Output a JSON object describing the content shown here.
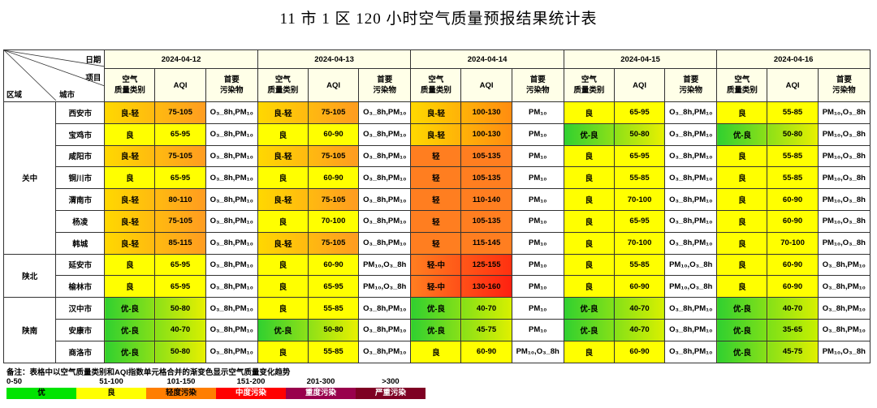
{
  "title": "11 市 1 区 120 小时空气质量预报结果统计表",
  "header": {
    "corner_date": "日期",
    "corner_item": "项目",
    "corner_region": "区域",
    "corner_city": "城市",
    "dates": [
      "2024-04-12",
      "2024-04-13",
      "2024-04-14",
      "2024-04-15",
      "2024-04-16"
    ],
    "sub_category_1": "空气",
    "sub_category_2": "质量类别",
    "sub_aqi": "AQI",
    "sub_pollutant_1": "首要",
    "sub_pollutant_2": "污染物"
  },
  "regions": [
    {
      "name": "关中",
      "rows": 7
    },
    {
      "name": "陕北",
      "rows": 2
    },
    {
      "name": "陕南",
      "rows": 3
    }
  ],
  "rows": [
    {
      "city": "西安市",
      "days": [
        {
          "cat": "良-轻",
          "aqi": "75-105",
          "pol": "O₃_8h,PM₁₀",
          "c1": "#ffd800",
          "c2": "#ff9c20"
        },
        {
          "cat": "良-轻",
          "aqi": "75-105",
          "pol": "O₃_8h,PM₁₀",
          "c1": "#ffd800",
          "c2": "#ff9c20"
        },
        {
          "cat": "良-轻",
          "aqi": "100-130",
          "pol": "PM₁₀",
          "c1": "#ffd800",
          "c2": "#ff8c10"
        },
        {
          "cat": "良",
          "aqi": "65-95",
          "pol": "O₃_8h,PM₁₀",
          "c1": "#ffff00",
          "c2": "#ffff00"
        },
        {
          "cat": "良",
          "aqi": "55-85",
          "pol": "PM₁₀,O₃_8h",
          "c1": "#ffff00",
          "c2": "#ffff00"
        }
      ]
    },
    {
      "city": "宝鸡市",
      "days": [
        {
          "cat": "良",
          "aqi": "65-95",
          "pol": "O₃_8h,PM₁₀",
          "c1": "#ffff00",
          "c2": "#ffff00"
        },
        {
          "cat": "良",
          "aqi": "60-90",
          "pol": "O₃_8h,PM₁₀",
          "c1": "#ffff00",
          "c2": "#ffff00"
        },
        {
          "cat": "良-轻",
          "aqi": "100-130",
          "pol": "PM₁₀",
          "c1": "#ffd800",
          "c2": "#ff8c10"
        },
        {
          "cat": "优-良",
          "aqi": "50-80",
          "pol": "O₃_8h,PM₁₀",
          "c1": "#30d030",
          "c2": "#e8f000"
        },
        {
          "cat": "优-良",
          "aqi": "50-80",
          "pol": "PM₁₀,O₃_8h",
          "c1": "#30d030",
          "c2": "#e8f000"
        }
      ]
    },
    {
      "city": "咸阳市",
      "days": [
        {
          "cat": "良-轻",
          "aqi": "75-105",
          "pol": "O₃_8h,PM₁₀",
          "c1": "#ffd800",
          "c2": "#ff9c20"
        },
        {
          "cat": "良-轻",
          "aqi": "75-105",
          "pol": "O₃_8h,PM₁₀",
          "c1": "#ffd800",
          "c2": "#ff9c20"
        },
        {
          "cat": "轻",
          "aqi": "105-135",
          "pol": "PM₁₀",
          "c1": "#ff7e20",
          "c2": "#ff7e20"
        },
        {
          "cat": "良",
          "aqi": "65-95",
          "pol": "O₃_8h,PM₁₀",
          "c1": "#ffff00",
          "c2": "#ffff00"
        },
        {
          "cat": "良",
          "aqi": "55-85",
          "pol": "PM₁₀,O₃_8h",
          "c1": "#ffff00",
          "c2": "#ffff00"
        }
      ]
    },
    {
      "city": "铜川市",
      "days": [
        {
          "cat": "良",
          "aqi": "65-95",
          "pol": "O₃_8h,PM₁₀",
          "c1": "#ffff00",
          "c2": "#ffff00"
        },
        {
          "cat": "良",
          "aqi": "60-90",
          "pol": "O₃_8h,PM₁₀",
          "c1": "#ffff00",
          "c2": "#ffff00"
        },
        {
          "cat": "轻",
          "aqi": "105-135",
          "pol": "PM₁₀",
          "c1": "#ff7e20",
          "c2": "#ff7e20"
        },
        {
          "cat": "良",
          "aqi": "55-85",
          "pol": "O₃_8h,PM₁₀",
          "c1": "#ffff00",
          "c2": "#ffff00"
        },
        {
          "cat": "良",
          "aqi": "55-85",
          "pol": "PM₁₀,O₃_8h",
          "c1": "#ffff00",
          "c2": "#ffff00"
        }
      ]
    },
    {
      "city": "渭南市",
      "days": [
        {
          "cat": "良-轻",
          "aqi": "80-110",
          "pol": "O₃_8h,PM₁₀",
          "c1": "#ffd800",
          "c2": "#ff9c20"
        },
        {
          "cat": "良-轻",
          "aqi": "75-105",
          "pol": "O₃_8h,PM₁₀",
          "c1": "#ffd800",
          "c2": "#ff9c20"
        },
        {
          "cat": "轻",
          "aqi": "110-140",
          "pol": "PM₁₀",
          "c1": "#ff7e20",
          "c2": "#ff7e20"
        },
        {
          "cat": "良",
          "aqi": "70-100",
          "pol": "O₃_8h,PM₁₀",
          "c1": "#ffff00",
          "c2": "#ffff00"
        },
        {
          "cat": "良",
          "aqi": "60-90",
          "pol": "PM₁₀,O₃_8h",
          "c1": "#ffff00",
          "c2": "#ffff00"
        }
      ]
    },
    {
      "city": "杨凌",
      "days": [
        {
          "cat": "良-轻",
          "aqi": "75-105",
          "pol": "O₃_8h,PM₁₀",
          "c1": "#ffd800",
          "c2": "#ff9c20"
        },
        {
          "cat": "良",
          "aqi": "70-100",
          "pol": "O₃_8h,PM₁₀",
          "c1": "#ffff00",
          "c2": "#ffff00"
        },
        {
          "cat": "轻",
          "aqi": "105-135",
          "pol": "PM₁₀",
          "c1": "#ff7e20",
          "c2": "#ff7e20"
        },
        {
          "cat": "良",
          "aqi": "65-95",
          "pol": "O₃_8h,PM₁₀",
          "c1": "#ffff00",
          "c2": "#ffff00"
        },
        {
          "cat": "良",
          "aqi": "60-90",
          "pol": "PM₁₀,O₃_8h",
          "c1": "#ffff00",
          "c2": "#ffff00"
        }
      ]
    },
    {
      "city": "韩城",
      "days": [
        {
          "cat": "良-轻",
          "aqi": "85-115",
          "pol": "O₃_8h,PM₁₀",
          "c1": "#ffd800",
          "c2": "#ff9c20"
        },
        {
          "cat": "良-轻",
          "aqi": "75-105",
          "pol": "O₃_8h,PM₁₀",
          "c1": "#ffd800",
          "c2": "#ff9c20"
        },
        {
          "cat": "轻",
          "aqi": "115-145",
          "pol": "PM₁₀",
          "c1": "#ff7e20",
          "c2": "#ff7e20"
        },
        {
          "cat": "良",
          "aqi": "70-100",
          "pol": "O₃_8h,PM₁₀",
          "c1": "#ffff00",
          "c2": "#ffff00"
        },
        {
          "cat": "良",
          "aqi": "70-100",
          "pol": "PM₁₀,O₃_8h",
          "c1": "#ffff00",
          "c2": "#ffff00"
        }
      ]
    },
    {
      "city": "延安市",
      "days": [
        {
          "cat": "良",
          "aqi": "65-95",
          "pol": "O₃_8h,PM₁₀",
          "c1": "#ffff00",
          "c2": "#ffff00"
        },
        {
          "cat": "良",
          "aqi": "60-90",
          "pol": "PM₁₀,O₃_8h",
          "c1": "#ffff00",
          "c2": "#ffff00"
        },
        {
          "cat": "轻-中",
          "aqi": "125-155",
          "pol": "PM₁₀",
          "c1": "#ff7e20",
          "c2": "#ff3010"
        },
        {
          "cat": "良",
          "aqi": "55-85",
          "pol": "PM₁₀,O₃_8h",
          "c1": "#ffff00",
          "c2": "#ffff00"
        },
        {
          "cat": "良",
          "aqi": "60-90",
          "pol": "O₃_8h,PM₁₀",
          "c1": "#ffff00",
          "c2": "#ffff00"
        }
      ]
    },
    {
      "city": "榆林市",
      "days": [
        {
          "cat": "良",
          "aqi": "65-95",
          "pol": "O₃_8h,PM₁₀",
          "c1": "#ffff00",
          "c2": "#ffff00"
        },
        {
          "cat": "良",
          "aqi": "65-95",
          "pol": "PM₁₀,O₃_8h",
          "c1": "#ffff00",
          "c2": "#ffff00"
        },
        {
          "cat": "轻-中",
          "aqi": "130-160",
          "pol": "PM₁₀",
          "c1": "#ff7e20",
          "c2": "#ff2010"
        },
        {
          "cat": "良",
          "aqi": "60-90",
          "pol": "PM₁₀,O₃_8h",
          "c1": "#ffff00",
          "c2": "#ffff00"
        },
        {
          "cat": "良",
          "aqi": "60-90",
          "pol": "O₃_8h,PM₁₀",
          "c1": "#ffff00",
          "c2": "#ffff00"
        }
      ]
    },
    {
      "city": "汉中市",
      "days": [
        {
          "cat": "优-良",
          "aqi": "50-80",
          "pol": "O₃_8h,PM₁₀",
          "c1": "#30d030",
          "c2": "#e8f000"
        },
        {
          "cat": "良",
          "aqi": "55-85",
          "pol": "O₃_8h,PM₁₀",
          "c1": "#ffff00",
          "c2": "#ffff00"
        },
        {
          "cat": "优-良",
          "aqi": "40-70",
          "pol": "PM₁₀",
          "c1": "#30d030",
          "c2": "#d8f000"
        },
        {
          "cat": "优-良",
          "aqi": "40-70",
          "pol": "O₃_8h,PM₁₀",
          "c1": "#30d030",
          "c2": "#d8f000"
        },
        {
          "cat": "优-良",
          "aqi": "40-70",
          "pol": "O₃_8h,PM₁₀",
          "c1": "#30d030",
          "c2": "#d8f000"
        }
      ]
    },
    {
      "city": "安康市",
      "days": [
        {
          "cat": "优-良",
          "aqi": "40-70",
          "pol": "O₃_8h,PM₁₀",
          "c1": "#30d030",
          "c2": "#d8f000"
        },
        {
          "cat": "优-良",
          "aqi": "50-80",
          "pol": "O₃_8h,PM₁₀",
          "c1": "#30d030",
          "c2": "#e8f000"
        },
        {
          "cat": "优-良",
          "aqi": "45-75",
          "pol": "PM₁₀",
          "c1": "#30d030",
          "c2": "#e0f000"
        },
        {
          "cat": "优-良",
          "aqi": "40-70",
          "pol": "O₃_8h,PM₁₀",
          "c1": "#30d030",
          "c2": "#d8f000"
        },
        {
          "cat": "优-良",
          "aqi": "35-65",
          "pol": "O₃_8h,PM₁₀",
          "c1": "#30d030",
          "c2": "#c8f000"
        }
      ]
    },
    {
      "city": "商洛市",
      "days": [
        {
          "cat": "优-良",
          "aqi": "50-80",
          "pol": "O₃_8h,PM₁₀",
          "c1": "#30d030",
          "c2": "#e8f000"
        },
        {
          "cat": "良",
          "aqi": "55-85",
          "pol": "O₃_8h,PM₁₀",
          "c1": "#ffff00",
          "c2": "#ffff00"
        },
        {
          "cat": "良",
          "aqi": "60-90",
          "pol": "PM₁₀,O₃_8h",
          "c1": "#ffff00",
          "c2": "#ffff00"
        },
        {
          "cat": "良",
          "aqi": "60-90",
          "pol": "O₃_8h,PM₁₀",
          "c1": "#ffff00",
          "c2": "#ffff00"
        },
        {
          "cat": "优-良",
          "aqi": "45-75",
          "pol": "PM₁₀,O₃_8h",
          "c1": "#30d030",
          "c2": "#e0f000"
        }
      ]
    }
  ],
  "note": "备注：表格中以空气质量类别和AQI指数单元格合并的渐变色显示空气质量变化趋势",
  "legend": [
    {
      "range": "0-50",
      "label": "优",
      "color": "#00e400"
    },
    {
      "range": "51-100",
      "label": "良",
      "color": "#ffff00"
    },
    {
      "range": "101-150",
      "label": "轻度污染",
      "color": "#ff7e00"
    },
    {
      "range": "151-200",
      "label": "中度污染",
      "color": "#ff0000"
    },
    {
      "range": "201-300",
      "label": "重度污染",
      "color": "#99004c"
    },
    {
      "range": ">300",
      "label": "严重污染",
      "color": "#7e0023"
    }
  ]
}
